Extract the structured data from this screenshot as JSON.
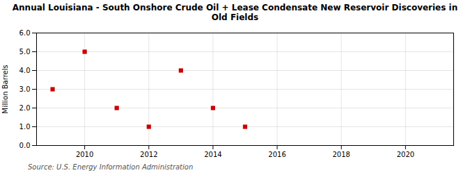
{
  "chart_data": {
    "type": "scatter",
    "title": "Annual Louisiana - South Onshore Crude Oil + Lease Condensate New Reservoir Discoveries in\nOld Fields",
    "ylabel": "Million Barrels",
    "source": "Source: U.S. Energy Information Administration",
    "x": [
      2009,
      2010,
      2011,
      2012,
      2013,
      2014,
      2015
    ],
    "values": [
      3.0,
      5.0,
      2.0,
      1.0,
      4.0,
      2.0,
      1.0
    ],
    "color": "#cc0000",
    "marker": "square",
    "xlim": [
      2008.5,
      2021.5
    ],
    "ylim": [
      0.0,
      6.0
    ],
    "xticks": [
      2010,
      2012,
      2014,
      2016,
      2018,
      2020
    ],
    "yticks": [
      {
        "value": 0,
        "label": "0.0"
      },
      {
        "value": 1,
        "label": "1.0"
      },
      {
        "value": 2,
        "label": "2.0"
      },
      {
        "value": 3,
        "label": "3.0"
      },
      {
        "value": 4,
        "label": "4.0"
      },
      {
        "value": 5,
        "label": "5.0"
      },
      {
        "value": 6,
        "label": "6.0"
      }
    ],
    "grid": true
  }
}
